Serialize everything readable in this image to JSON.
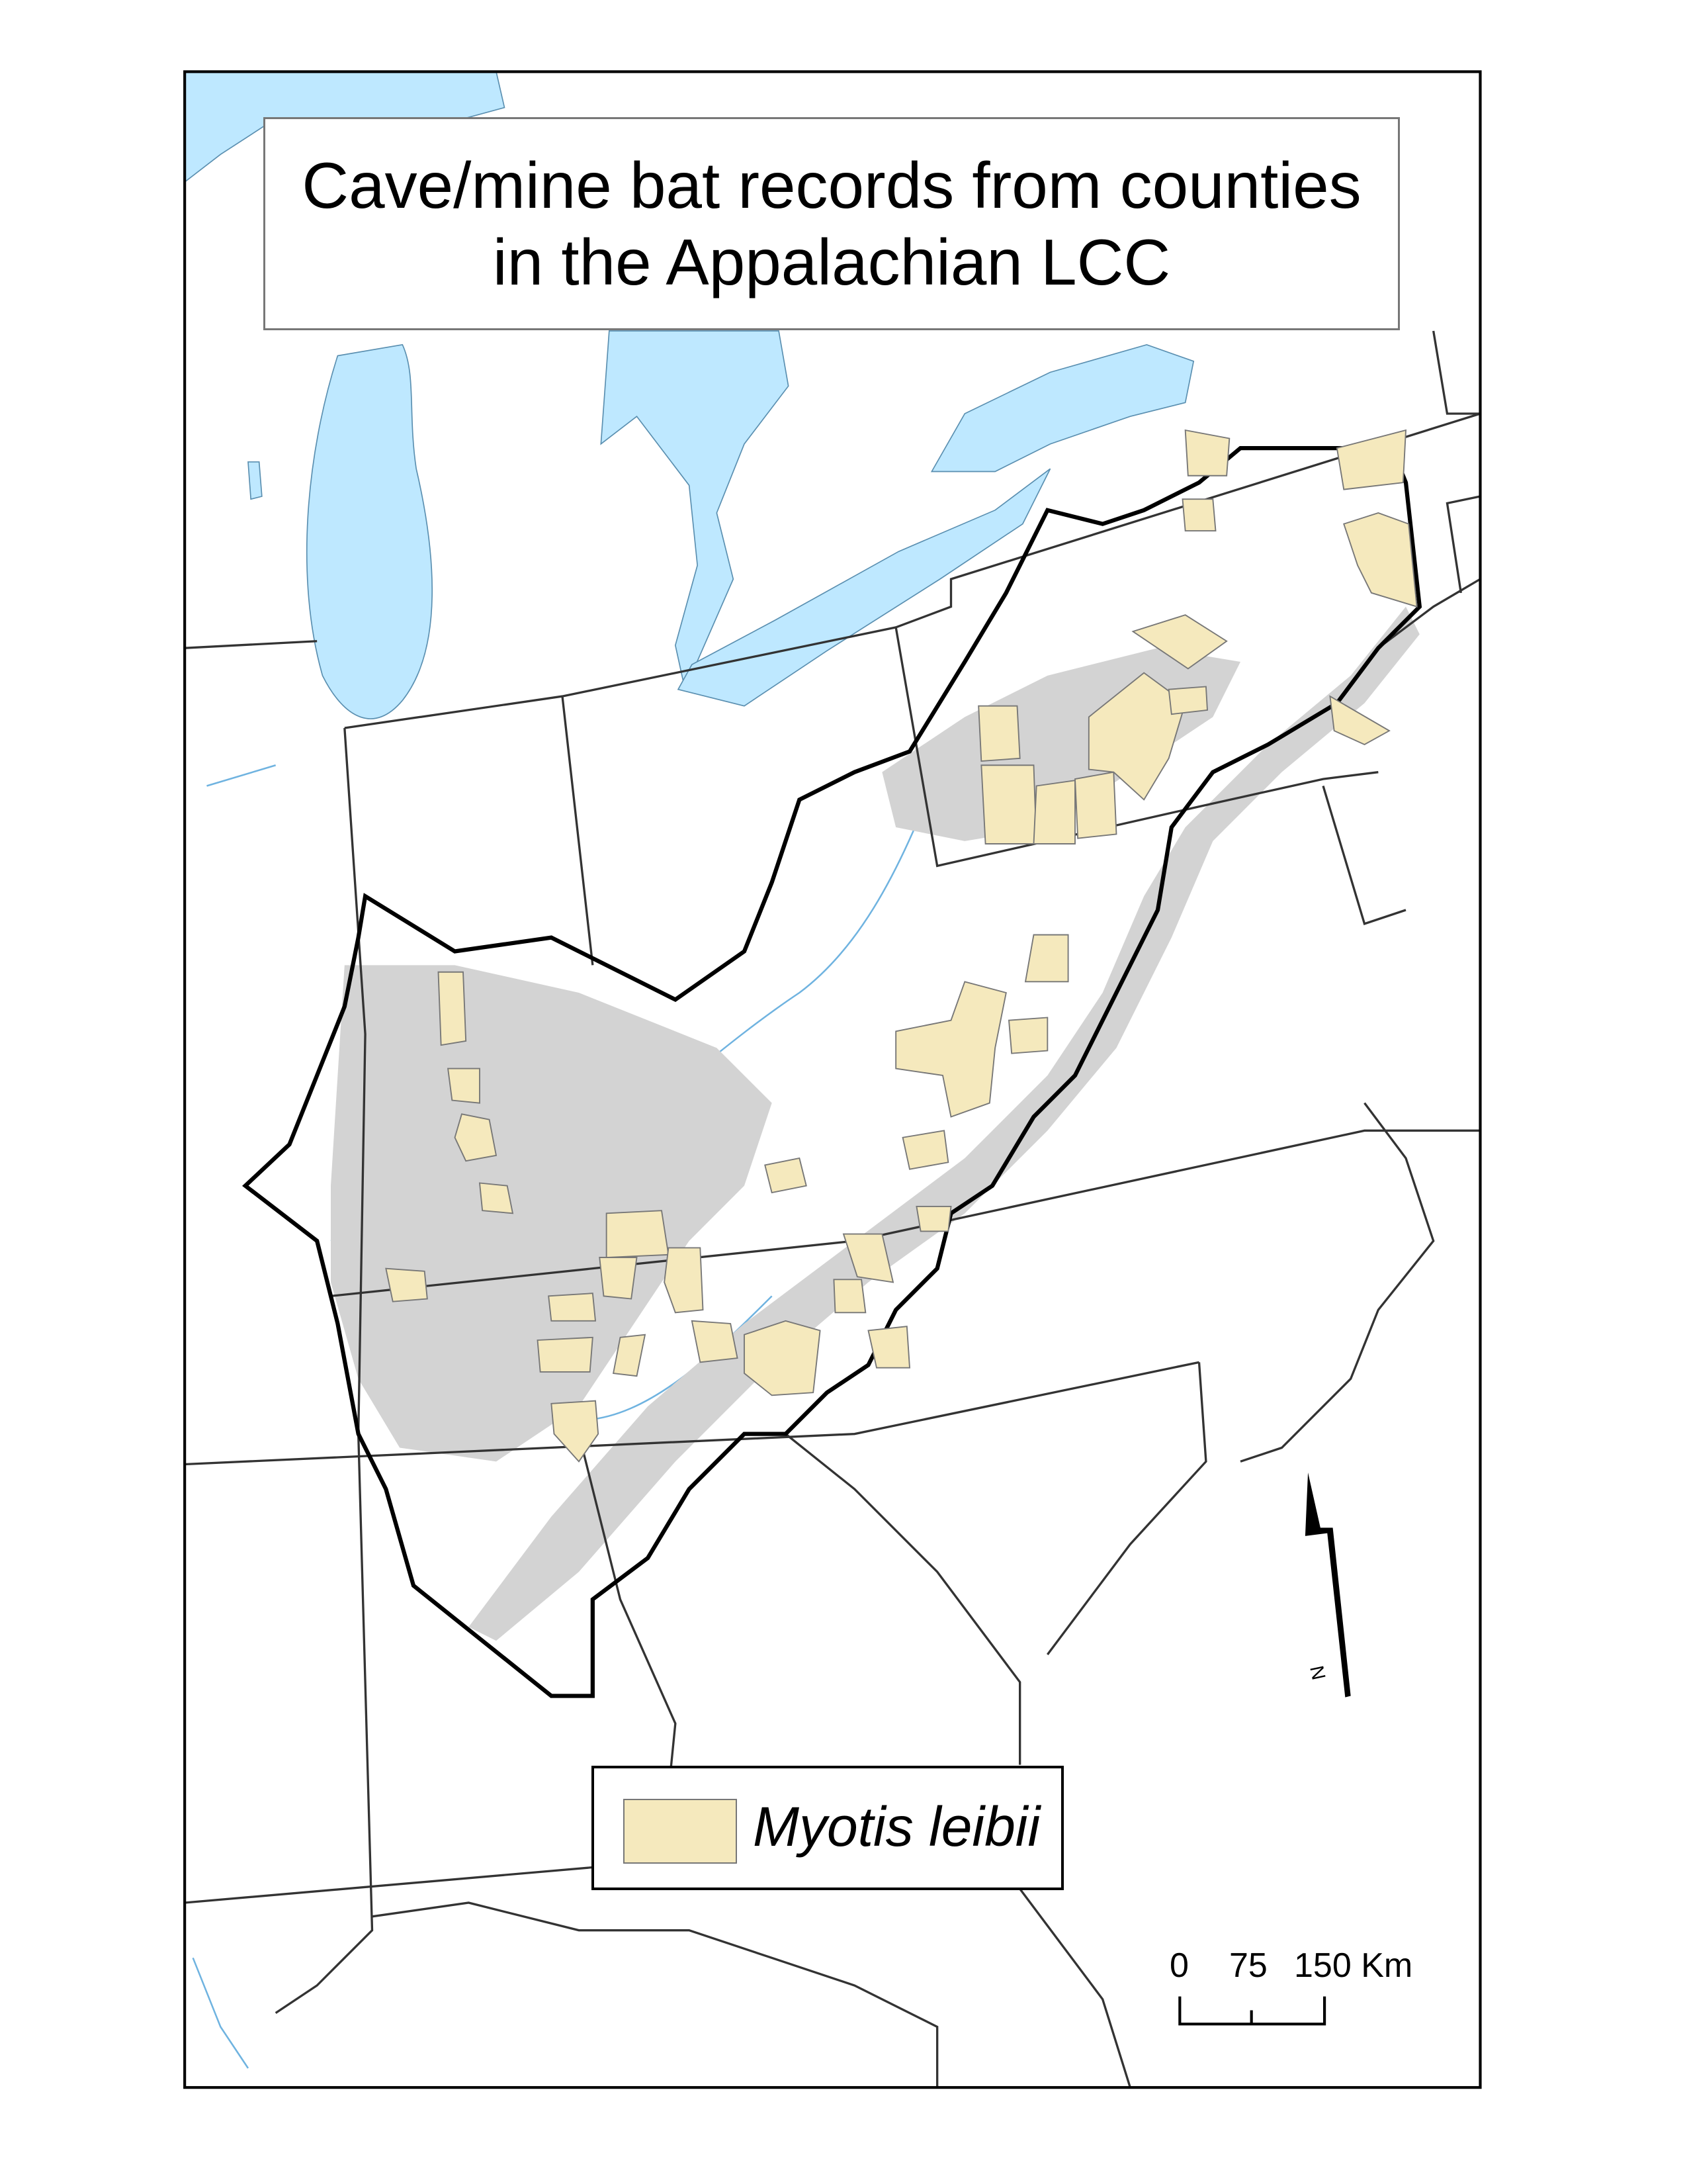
{
  "map": {
    "title_line1": "Cave/mine bat records from counties",
    "title_line2": "in the Appalachian LCC",
    "legend": {
      "label": "Myotis leibii",
      "swatch_color": "#f5e9bd"
    },
    "scale_bar": {
      "labels": [
        "0",
        "75",
        "150 Km"
      ]
    },
    "north_arrow": {
      "label": "N"
    },
    "colors": {
      "water": "#bee8ff",
      "karst_shading": "#d3d3d3",
      "lcc_boundary": "#000000",
      "state_lines": "#333333"
    }
  }
}
